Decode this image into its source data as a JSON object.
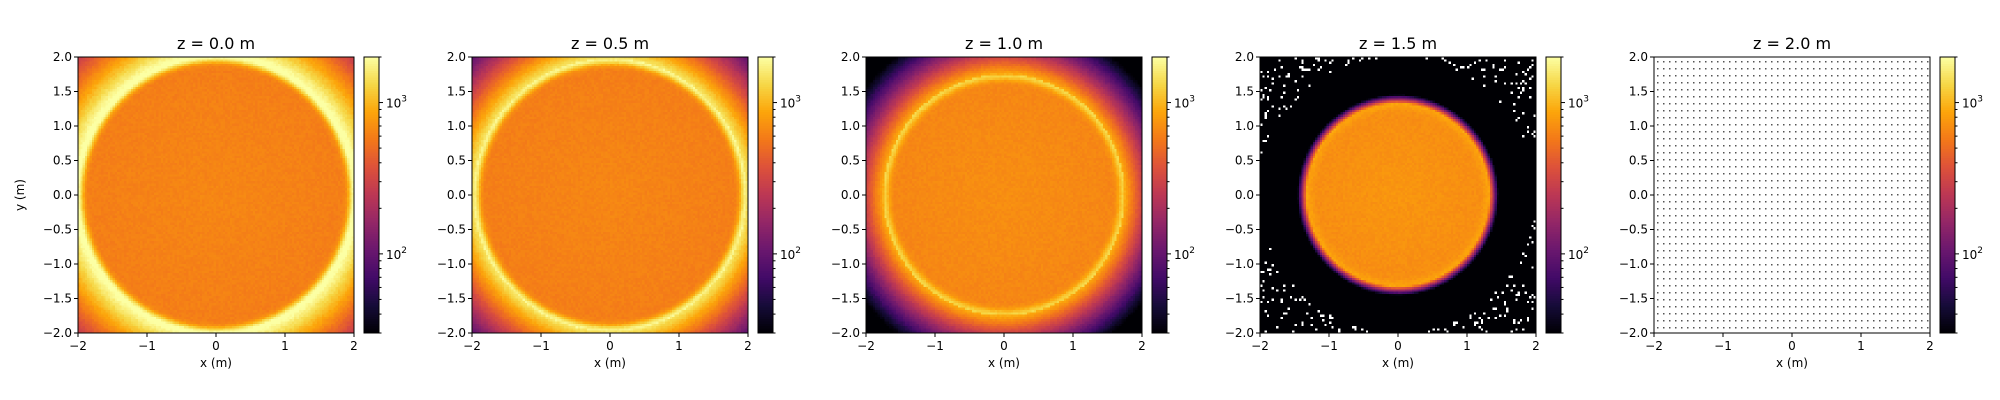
{
  "chart_data": {
    "type": "heatmap",
    "colormap": "inferno",
    "color_scale": "log",
    "xlabel": "x (m)",
    "ylabel": "y (m)",
    "xlim": [
      -2,
      2
    ],
    "ylim": [
      -2,
      2
    ],
    "x_ticks": [
      -2,
      -1,
      0,
      1,
      2
    ],
    "y_ticks": [
      -2.0,
      -1.5,
      -1.0,
      -0.5,
      0.0,
      0.5,
      1.0,
      1.5,
      2.0
    ],
    "x_tick_labels": [
      "−2",
      "−1",
      "0",
      "1",
      "2"
    ],
    "y_tick_labels": [
      "−2.0",
      "−1.5",
      "−1.0",
      "−0.5",
      "0.0",
      "0.5",
      "1.0",
      "1.5",
      "2.0"
    ],
    "colorbar": {
      "range": [
        30,
        2000
      ],
      "major_ticks": [
        100,
        1000
      ],
      "major_tick_labels": [
        "10",
        "10"
      ],
      "major_tick_exponents": [
        "2",
        "3"
      ]
    },
    "panels": [
      {
        "title": "z = 0.0 m",
        "beam_radius": 2.02,
        "edge_brightness": 2200,
        "center_value": 650,
        "halo": "strong",
        "empty": false
      },
      {
        "title": "z = 0.5 m",
        "beam_radius": 1.98,
        "edge_brightness": 1900,
        "center_value": 650,
        "halo": "medium",
        "empty": false
      },
      {
        "title": "z = 1.0 m",
        "beam_radius": 1.75,
        "edge_brightness": 1400,
        "center_value": 700,
        "halo": "weak",
        "empty": false
      },
      {
        "title": "z = 1.5 m",
        "beam_radius": 1.32,
        "edge_brightness": 900,
        "center_value": 750,
        "halo": "none",
        "empty": false
      },
      {
        "title": "z = 2.0 m",
        "beam_radius": 0,
        "edge_brightness": 0,
        "center_value": 0,
        "halo": "none",
        "empty": true
      }
    ]
  }
}
